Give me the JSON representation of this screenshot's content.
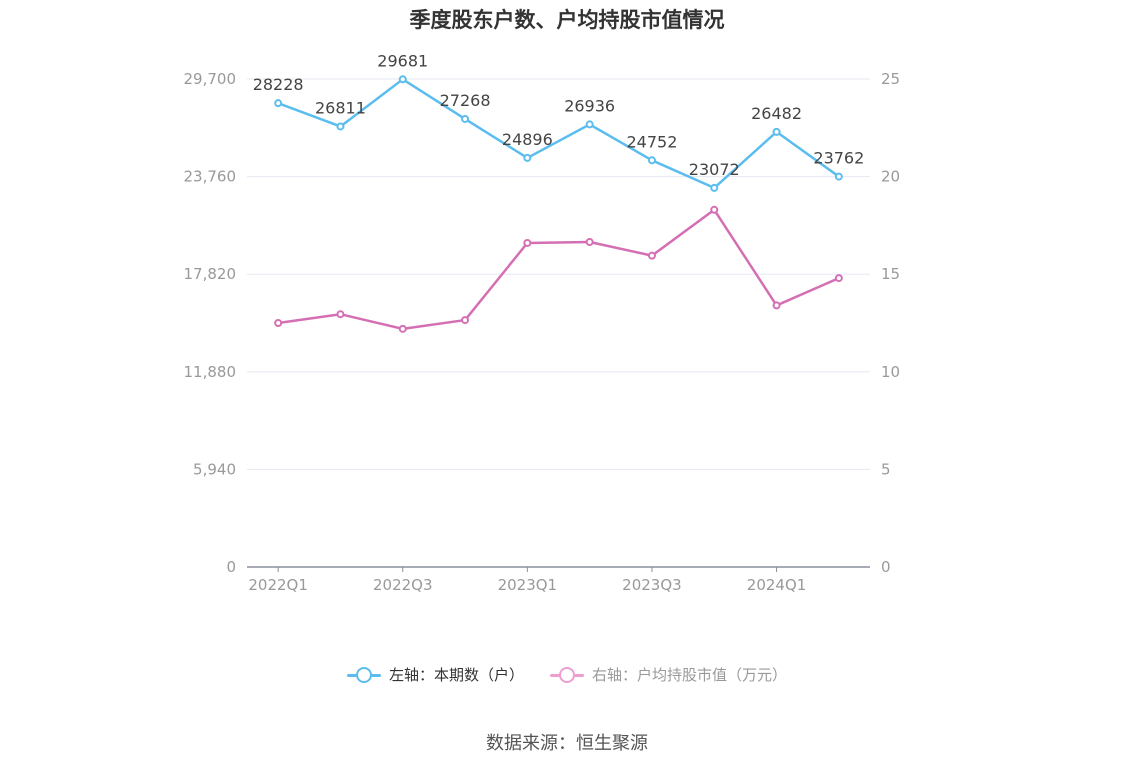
{
  "title": "季度股东户数、户均持股市值情况",
  "source": "数据来源：恒生聚源",
  "colors": {
    "left_series": "#5bbdef",
    "right_series": "#d46fb3",
    "right_legend": "#ec9fcf",
    "grid": "#e6e8f2",
    "axis": "#8a8f9c",
    "tick": "#999999"
  },
  "legend": [
    {
      "label": "左轴：本期数（户）"
    },
    {
      "label": "右轴：户均持股市值（万元）"
    }
  ],
  "chart_data": {
    "type": "line",
    "title": "季度股东户数、户均持股市值情况",
    "categories": [
      "2022Q1",
      "2022Q2",
      "2022Q3",
      "2022Q4",
      "2023Q1",
      "2023Q2",
      "2023Q3",
      "2023Q4",
      "2024Q1",
      "2024Q2"
    ],
    "x_tick_labels": [
      "2022Q1",
      "2022Q3",
      "2023Q1",
      "2023Q3",
      "2024Q1"
    ],
    "left_axis": {
      "min": 0,
      "max": 29700,
      "ticks": [
        "0",
        "5,940",
        "11,880",
        "17,820",
        "23,760",
        "29,700"
      ]
    },
    "right_axis": {
      "min": 0,
      "max": 25,
      "ticks": [
        "0",
        "5",
        "10",
        "15",
        "20",
        "25"
      ]
    },
    "series": [
      {
        "name": "左轴：本期数（户）",
        "axis": "left",
        "color": "#5bbdef",
        "values": [
          28228,
          26811,
          29681,
          27268,
          24896,
          26936,
          24752,
          23072,
          26482,
          23762
        ],
        "labels": [
          "28228",
          "26811",
          "29681",
          "27268",
          "24896",
          "26936",
          "24752",
          "23072",
          "26482",
          "23762"
        ]
      },
      {
        "name": "右轴：户均持股市值（万元）",
        "axis": "right",
        "color": "#d46fb3",
        "values": [
          12.5,
          12.95,
          12.2,
          12.65,
          16.6,
          16.65,
          15.95,
          18.3,
          13.4,
          14.8
        ]
      }
    ],
    "grid": true,
    "legend_position": "bottom"
  }
}
